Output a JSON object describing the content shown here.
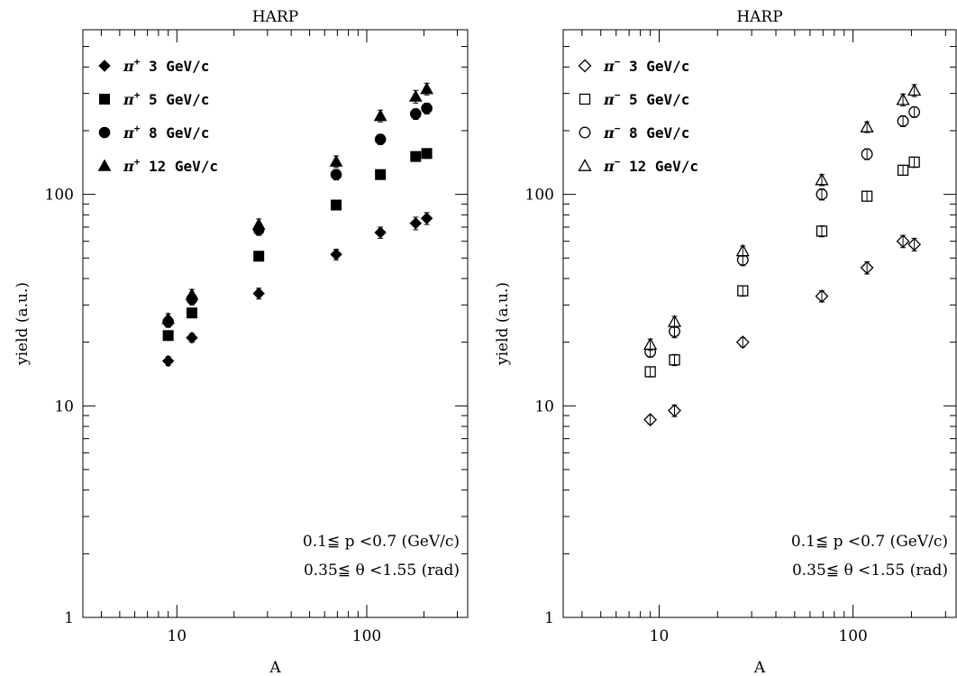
{
  "chart_data": [
    {
      "type": "scatter",
      "title": "HARP",
      "xlabel": "A",
      "ylabel": "yield (a.u.)",
      "xscale": "log",
      "yscale": "log",
      "xlim": [
        3.2,
        340
      ],
      "ylim": [
        1,
        600
      ],
      "x_ticklabels": [
        "10",
        "100"
      ],
      "y_ticklabels": [
        "1",
        "10",
        "100"
      ],
      "legend_location": "top-left",
      "annotation_lines": [
        "0.1≦ p <0.7  (GeV/c)",
        "0.35≦ θ <1.55  (rad)"
      ],
      "series": [
        {
          "name": "π+ 3 GeV/c",
          "marker": "diamond",
          "filled": true,
          "x": [
            9,
            12,
            27,
            69,
            118,
            181,
            207
          ],
          "y": [
            16.3,
            21,
            34,
            52,
            66,
            73,
            77
          ],
          "yerr": [
            0.8,
            1.0,
            2.0,
            3.0,
            4.0,
            5.0,
            5.0
          ]
        },
        {
          "name": "π+ 5 GeV/c",
          "marker": "square",
          "filled": true,
          "x": [
            9,
            12,
            27,
            69,
            118,
            181,
            207
          ],
          "y": [
            21.5,
            27.5,
            51,
            89,
            124,
            151,
            156
          ],
          "yerr": [
            1.0,
            1.2,
            2.5,
            4.0,
            6.0,
            7.0,
            8.0
          ]
        },
        {
          "name": "π+ 8 GeV/c",
          "marker": "circle",
          "filled": true,
          "x": [
            9,
            12,
            27,
            69,
            118,
            181,
            207
          ],
          "y": [
            25,
            32,
            68,
            124,
            182,
            240,
            255
          ],
          "yerr": [
            1.5,
            2.0,
            4.0,
            7.0,
            10.0,
            14.0,
            15.0
          ]
        },
        {
          "name": "π+ 12 GeV/c",
          "marker": "triangle",
          "filled": true,
          "x": [
            9,
            12,
            27,
            69,
            118,
            181,
            207
          ],
          "y": [
            25.8,
            33.5,
            72,
            143,
            235,
            290,
            315
          ],
          "yerr": [
            1.5,
            2.0,
            4.5,
            9.0,
            15.0,
            20.0,
            20.0
          ]
        }
      ]
    },
    {
      "type": "scatter",
      "title": "HARP",
      "xlabel": "A",
      "ylabel": "yield (a.u.)",
      "xscale": "log",
      "yscale": "log",
      "xlim": [
        3.2,
        340
      ],
      "ylim": [
        1,
        600
      ],
      "x_ticklabels": [
        "10",
        "100"
      ],
      "y_ticklabels": [
        "1",
        "10",
        "100"
      ],
      "legend_location": "top-left",
      "annotation_lines": [
        "0.1≦ p <0.7  (GeV/c)",
        "0.35≦ θ <1.55  (rad)"
      ],
      "series": [
        {
          "name": "π− 3 GeV/c",
          "marker": "diamond",
          "filled": false,
          "x": [
            9,
            12,
            27,
            69,
            118,
            181,
            207
          ],
          "y": [
            8.6,
            9.5,
            20,
            33,
            45,
            60,
            58
          ],
          "yerr": [
            0.4,
            0.6,
            1.0,
            2.0,
            3.0,
            4.0,
            4.0
          ]
        },
        {
          "name": "π− 5 GeV/c",
          "marker": "square",
          "filled": false,
          "x": [
            9,
            12,
            27,
            69,
            118,
            181,
            207
          ],
          "y": [
            14.5,
            16.5,
            35,
            67,
            98,
            130,
            142
          ],
          "yerr": [
            0.8,
            1.0,
            2.0,
            4.0,
            5.0,
            7.0,
            8.0
          ]
        },
        {
          "name": "π− 8 GeV/c",
          "marker": "circle",
          "filled": false,
          "x": [
            9,
            12,
            27,
            69,
            118,
            181,
            207
          ],
          "y": [
            18,
            22.5,
            49,
            100,
            155,
            222,
            245
          ],
          "yerr": [
            1.0,
            1.5,
            3.0,
            6.0,
            9.0,
            13.0,
            14.0
          ]
        },
        {
          "name": "π− 12 GeV/c",
          "marker": "triangle",
          "filled": false,
          "x": [
            9,
            12,
            27,
            69,
            118,
            181,
            207
          ],
          "y": [
            19.5,
            25,
            54,
            117,
            208,
            280,
            310
          ],
          "yerr": [
            1.2,
            1.5,
            3.0,
            7.0,
            12.0,
            18.0,
            20.0
          ]
        }
      ]
    }
  ]
}
